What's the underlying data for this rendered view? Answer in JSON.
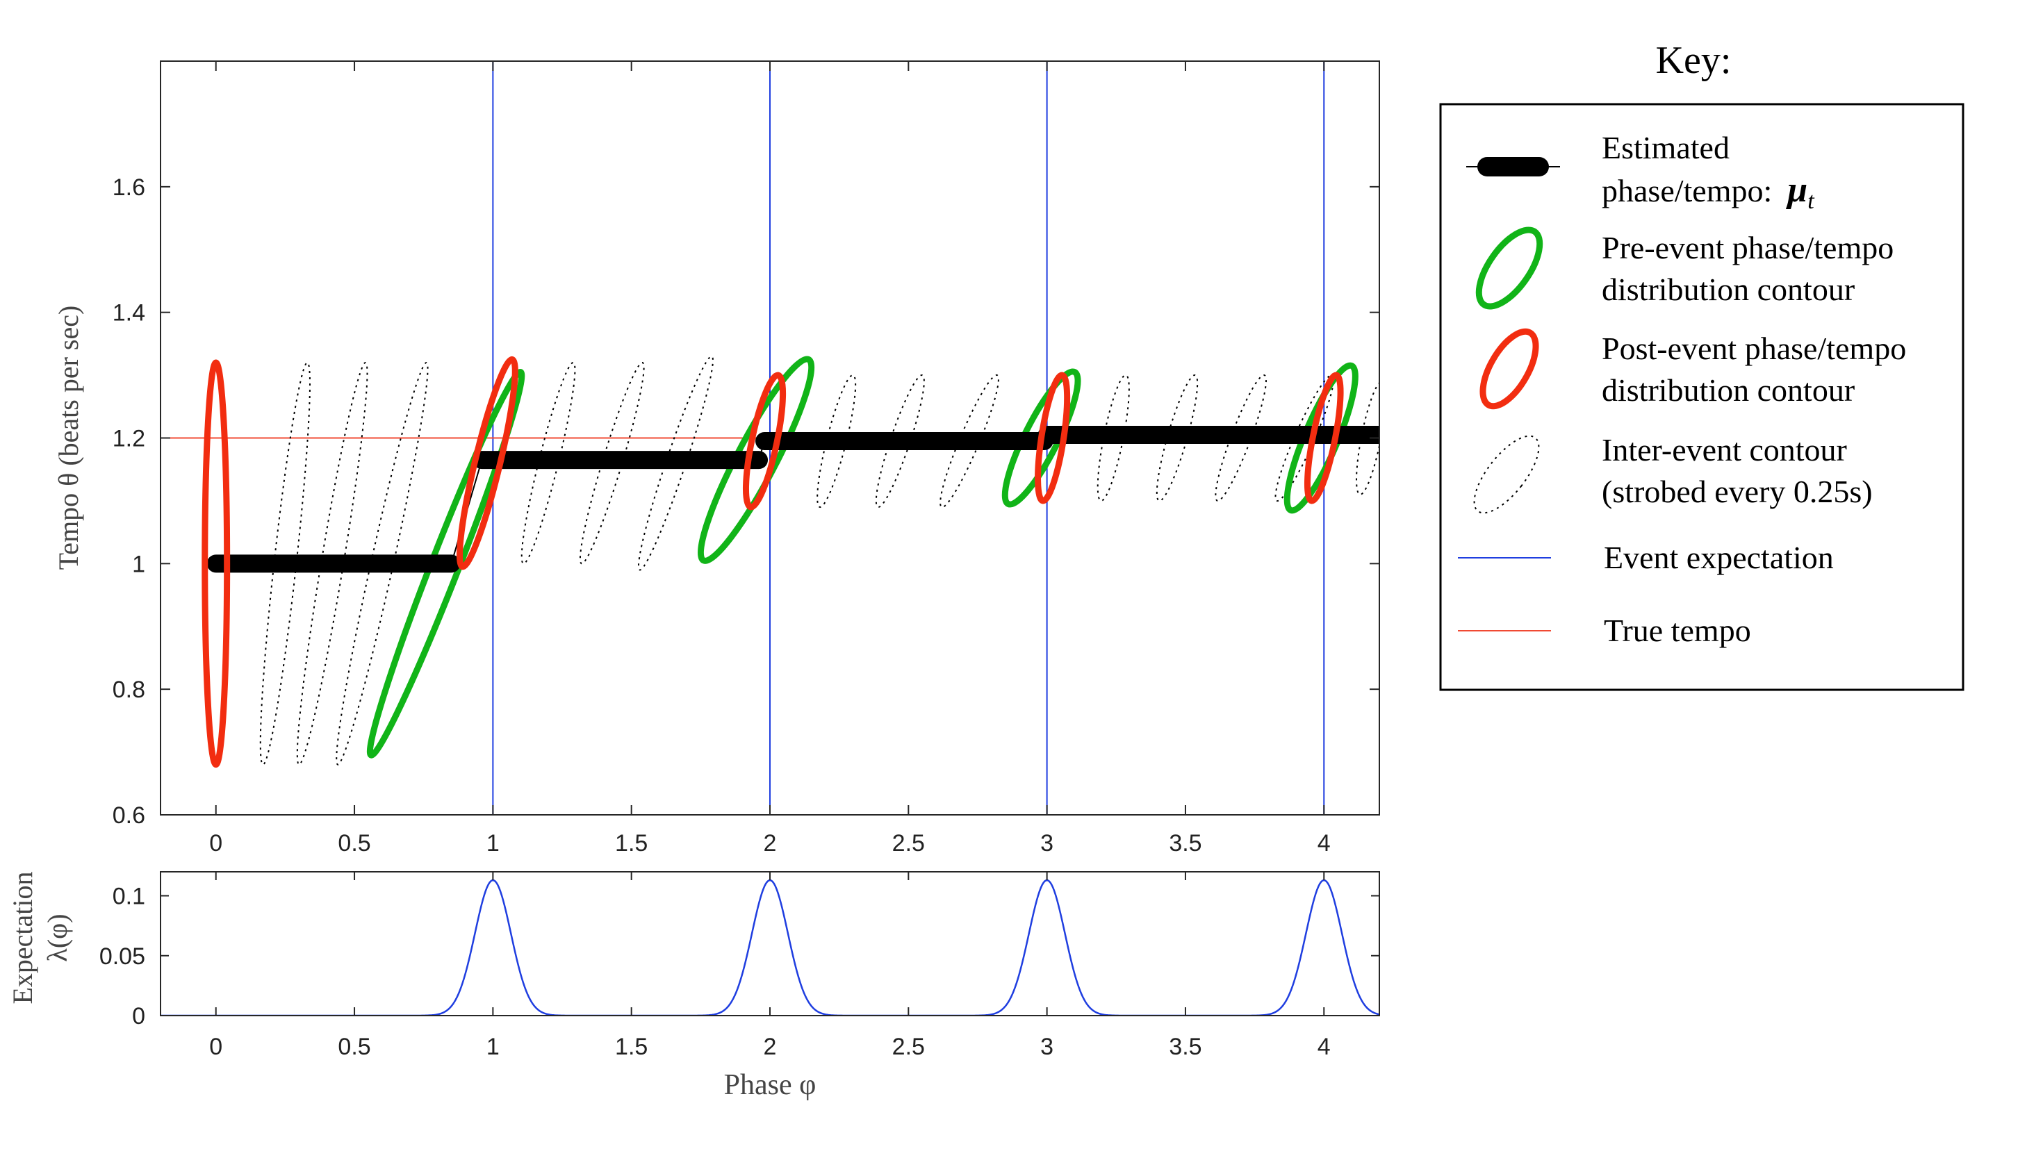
{
  "chart_data": [
    {
      "type": "line",
      "id": "main",
      "ylabel": "Tempo θ (beats per sec)",
      "xlim": [
        -0.2,
        4.2
      ],
      "ylim": [
        0.6,
        1.8
      ],
      "xticks": [
        0,
        0.5,
        1,
        1.5,
        2,
        2.5,
        3,
        3.5,
        4
      ],
      "xtick_labels": [
        "0",
        "0.5",
        "1",
        "1.5",
        "2",
        "2.5",
        "3",
        "3.5",
        "4"
      ],
      "yticks": [
        0.6,
        0.8,
        1.0,
        1.2,
        1.4,
        1.6
      ],
      "ytick_labels": [
        "0.6",
        "0.8",
        "1",
        "1.2",
        "1.4",
        "1.6"
      ],
      "grid": false,
      "true_tempo": 1.2,
      "event_expectations": [
        1,
        2,
        3,
        4
      ],
      "estimate_segments": [
        {
          "x": [
            0,
            0.85
          ],
          "y": [
            1.0,
            1.0
          ]
        },
        {
          "x": [
            0.96,
            1.96
          ],
          "y": [
            1.165,
            1.165
          ]
        },
        {
          "x": [
            1.98,
            2.99
          ],
          "y": [
            1.195,
            1.195
          ]
        },
        {
          "x": [
            3.0,
            4.2
          ],
          "y": [
            1.205,
            1.205
          ]
        }
      ],
      "jumps": [
        {
          "x": [
            0.85,
            0.96
          ],
          "y": [
            1.0,
            1.165
          ]
        },
        {
          "x": [
            1.96,
            1.98
          ],
          "y": [
            1.165,
            1.195
          ]
        },
        {
          "x": [
            2.99,
            3.0
          ],
          "y": [
            1.195,
            1.205
          ]
        }
      ],
      "pre_event_contours": [
        {
          "cx": 0.83,
          "cy": 1.0,
          "tip_dx": 0.27,
          "tip_dy": 0.305,
          "w": 0.05
        },
        {
          "cx": 1.95,
          "cy": 1.165,
          "tip_dx": 0.19,
          "tip_dy": 0.16,
          "w": 0.07
        },
        {
          "cx": 2.98,
          "cy": 1.2,
          "tip_dx": 0.12,
          "tip_dy": 0.105,
          "w": 0.06
        },
        {
          "cx": 3.99,
          "cy": 1.2,
          "tip_dx": 0.11,
          "tip_dy": 0.115,
          "w": 0.06
        }
      ],
      "post_event_contours": [
        {
          "cx": 0.0,
          "cy": 1.0,
          "tip_dx": 0.0,
          "tip_dy": 0.32,
          "w": 0.04
        },
        {
          "cx": 0.98,
          "cy": 1.16,
          "tip_dx": 0.09,
          "tip_dy": 0.165,
          "w": 0.045
        },
        {
          "cx": 1.98,
          "cy": 1.195,
          "tip_dx": 0.05,
          "tip_dy": 0.105,
          "w": 0.045
        },
        {
          "cx": 3.02,
          "cy": 1.2,
          "tip_dx": 0.035,
          "tip_dy": 0.1,
          "w": 0.04
        },
        {
          "cx": 4.0,
          "cy": 1.2,
          "tip_dx": 0.045,
          "tip_dy": 0.1,
          "w": 0.04
        }
      ],
      "inter_event_contours": [
        {
          "cx": 0.25,
          "cy": 1.0,
          "tip_dx": 0.08,
          "tip_dy": 0.32,
          "w": 0.04
        },
        {
          "cx": 0.42,
          "cy": 1.0,
          "tip_dx": 0.12,
          "tip_dy": 0.32,
          "w": 0.04
        },
        {
          "cx": 0.6,
          "cy": 1.0,
          "tip_dx": 0.16,
          "tip_dy": 0.32,
          "w": 0.04
        },
        {
          "cx": 1.2,
          "cy": 1.16,
          "tip_dx": 0.09,
          "tip_dy": 0.16,
          "w": 0.035
        },
        {
          "cx": 1.43,
          "cy": 1.16,
          "tip_dx": 0.11,
          "tip_dy": 0.16,
          "w": 0.035
        },
        {
          "cx": 1.66,
          "cy": 1.16,
          "tip_dx": 0.13,
          "tip_dy": 0.17,
          "w": 0.035
        },
        {
          "cx": 2.24,
          "cy": 1.195,
          "tip_dx": 0.06,
          "tip_dy": 0.105,
          "w": 0.035
        },
        {
          "cx": 2.47,
          "cy": 1.195,
          "tip_dx": 0.08,
          "tip_dy": 0.105,
          "w": 0.035
        },
        {
          "cx": 2.72,
          "cy": 1.195,
          "tip_dx": 0.1,
          "tip_dy": 0.105,
          "w": 0.035
        },
        {
          "cx": 3.24,
          "cy": 1.2,
          "tip_dx": 0.045,
          "tip_dy": 0.1,
          "w": 0.035
        },
        {
          "cx": 3.47,
          "cy": 1.2,
          "tip_dx": 0.065,
          "tip_dy": 0.1,
          "w": 0.035
        },
        {
          "cx": 3.7,
          "cy": 1.2,
          "tip_dx": 0.085,
          "tip_dy": 0.1,
          "w": 0.035
        },
        {
          "cx": 3.93,
          "cy": 1.2,
          "tip_dx": 0.1,
          "tip_dy": 0.1,
          "w": 0.035
        },
        {
          "cx": 4.17,
          "cy": 1.2,
          "tip_dx": 0.04,
          "tip_dy": 0.09,
          "w": 0.035
        }
      ]
    },
    {
      "type": "line",
      "id": "expectation",
      "xlabel": "Phase φ",
      "ylabel_line1": "Expectation",
      "ylabel_line2": "λ(φ)",
      "xlim": [
        -0.2,
        4.2
      ],
      "ylim": [
        0,
        0.12
      ],
      "xticks": [
        0,
        0.5,
        1,
        1.5,
        2,
        2.5,
        3,
        3.5,
        4
      ],
      "xtick_labels": [
        "0",
        "0.5",
        "1",
        "1.5",
        "2",
        "2.5",
        "3",
        "3.5",
        "4"
      ],
      "yticks": [
        0,
        0.05,
        0.1
      ],
      "ytick_labels": [
        "0",
        "0.05",
        "0.1"
      ],
      "peaks": [
        1,
        2,
        3,
        4
      ],
      "peak_height": 0.113,
      "peak_sigma": 0.065
    }
  ],
  "key": {
    "title": "Key:",
    "items": [
      {
        "line1": "Estimated",
        "line2": "phase/tempo:",
        "symbol": "μ",
        "subscript": "t"
      },
      {
        "line1": "Pre-event phase/tempo",
        "line2": "distribution contour"
      },
      {
        "line1": "Post-event phase/tempo",
        "line2": "distribution contour"
      },
      {
        "line1": "Inter-event contour",
        "line2": "(strobed every 0.25s)"
      },
      {
        "line1": "Event expectation"
      },
      {
        "line1": "True tempo"
      }
    ]
  },
  "colors": {
    "estimate": "#000000",
    "pre_event": "#11b418",
    "post_event": "#f22d10",
    "inter_event": "#000000",
    "event_expectation": "#1f3ee0",
    "true_tempo": "#f04a33"
  }
}
